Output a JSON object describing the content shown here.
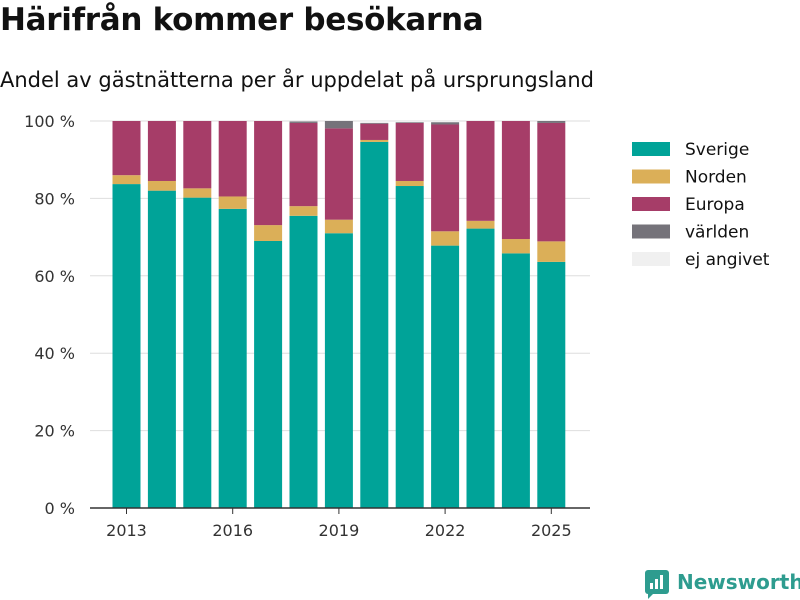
{
  "title": "Härifrån kommer besökarna",
  "subtitle": "Andel av gästnätterna per år uppdelat på ursprungsland",
  "brand": {
    "name": "Newsworthy",
    "icon": "bar-chart-logo-icon",
    "color": "#2e9c8f"
  },
  "chart_data": {
    "type": "bar",
    "stacked": true,
    "years": [
      2013,
      2014,
      2015,
      2016,
      2017,
      2018,
      2019,
      2020,
      2021,
      2022,
      2023,
      2024,
      2025
    ],
    "x_ticks": [
      "2013",
      "2016",
      "2019",
      "2022",
      "2025"
    ],
    "y_ticks": [
      "0 %",
      "20 %",
      "40 %",
      "60 %",
      "80 %",
      "100 %"
    ],
    "ylim": [
      0,
      100
    ],
    "grid": true,
    "legend_position": "right",
    "series": [
      {
        "name": "Sverige",
        "color": "#00a398",
        "values": [
          83.7,
          82.0,
          80.2,
          77.3,
          69.0,
          75.5,
          71.0,
          94.6,
          83.2,
          67.8,
          72.2,
          65.8,
          63.6
        ]
      },
      {
        "name": "Norden",
        "color": "#dbaf58",
        "values": [
          2.3,
          2.5,
          2.4,
          3.2,
          4.1,
          2.5,
          3.5,
          0.5,
          1.3,
          3.7,
          2.0,
          3.7,
          5.3
        ]
      },
      {
        "name": "Europa",
        "color": "#a63d68",
        "values": [
          14.0,
          15.5,
          17.4,
          19.5,
          26.9,
          21.5,
          23.6,
          4.2,
          15.0,
          27.6,
          25.8,
          30.5,
          30.6
        ]
      },
      {
        "name": "världen",
        "color": "#75737a",
        "values": [
          0.0,
          0.0,
          0.0,
          0.0,
          0.0,
          0.4,
          1.9,
          0.2,
          0.2,
          0.6,
          0.0,
          0.0,
          0.5
        ]
      },
      {
        "name": "ej angivet",
        "color": "#f0f0f0",
        "values": [
          0.0,
          0.0,
          0.0,
          0.0,
          0.0,
          0.1,
          0.0,
          0.5,
          0.3,
          0.3,
          0.0,
          0.0,
          0.0
        ]
      }
    ]
  }
}
